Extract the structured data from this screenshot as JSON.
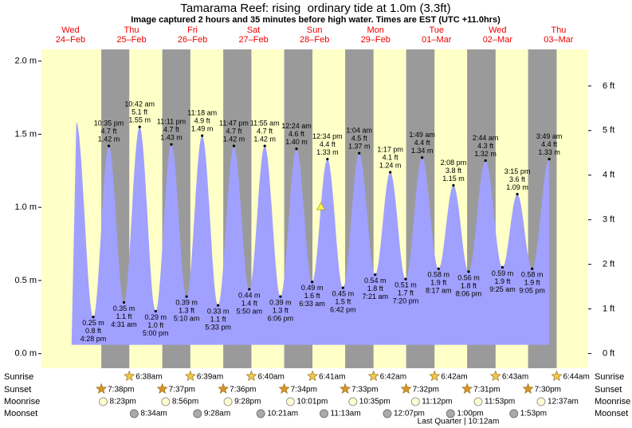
{
  "chart_data": {
    "type": "tide",
    "title": "Tamarama Reef: rising  ordinary tide at 1.0m (3.3ft)",
    "subtitle": "Image captured 2 hours and 35 minutes before high water. Times are EST (UTC +11.0hrs)",
    "days": [
      {
        "weekday": "Wed",
        "date": "24–Feb"
      },
      {
        "weekday": "Thu",
        "date": "25–Feb"
      },
      {
        "weekday": "Fri",
        "date": "26–Feb"
      },
      {
        "weekday": "Sat",
        "date": "27–Feb"
      },
      {
        "weekday": "Sun",
        "date": "28–Feb"
      },
      {
        "weekday": "Mon",
        "date": "29–Feb"
      },
      {
        "weekday": "Tue",
        "date": "01–Mar"
      },
      {
        "weekday": "Wed",
        "date": "02–Mar"
      },
      {
        "weekday": "Thu",
        "date": "03–Mar"
      }
    ],
    "ylim": [
      -0.1,
      2.08
    ],
    "yticks": [
      {
        "value": 0,
        "label": "0.0 m"
      },
      {
        "value": 0.5,
        "label": "0.5 m"
      },
      {
        "value": 1,
        "label": "1.0 m"
      },
      {
        "value": 1.5,
        "label": "1.5 m"
      },
      {
        "value": 2,
        "label": "2.0 m"
      }
    ],
    "y2lim": [
      -0.33,
      6.82
    ],
    "y2ticks": [
      {
        "value": 0,
        "label": "0 ft"
      },
      {
        "value": 1,
        "label": "1 ft"
      },
      {
        "value": 2,
        "label": "2 ft"
      },
      {
        "value": 3,
        "label": "3 ft"
      },
      {
        "value": 4,
        "label": "4 ft"
      },
      {
        "value": 5,
        "label": "5 ft"
      },
      {
        "value": 6,
        "label": "6 ft"
      }
    ],
    "color": "#a0a0ff",
    "day_color": "#ffffc8",
    "night_color": "#9a9a9a",
    "marker": {
      "day": 4,
      "hour": 10.0,
      "value": 1.0
    },
    "extremes": [
      {
        "day": 0,
        "hour": 9.8,
        "value": 1.58
      },
      {
        "day": 0,
        "time": "4:28 pm",
        "value": 0.25,
        "value_label": "0.25 m",
        "ft_label": "0.8 ft"
      },
      {
        "day": 0,
        "time": "10:35 pm",
        "value": 1.42,
        "value_label": "1.42 m",
        "ft_label": "4.7 ft"
      },
      {
        "day": 1,
        "time": "4:31 am",
        "value": 0.35,
        "value_label": "0.35 m",
        "ft_label": "1.1 ft"
      },
      {
        "day": 1,
        "time": "10:42 am",
        "value": 1.55,
        "value_label": "1.55 m",
        "ft_label": "5.1 ft"
      },
      {
        "day": 1,
        "time": "5:00 pm",
        "value": 0.29,
        "value_label": "0.29 m",
        "ft_label": "1.0 ft"
      },
      {
        "day": 1,
        "time": "11:11 pm",
        "value": 1.43,
        "value_label": "1.43 m",
        "ft_label": "4.7 ft"
      },
      {
        "day": 2,
        "time": "5:10 am",
        "value": 0.39,
        "value_label": "0.39 m",
        "ft_label": "1.3 ft"
      },
      {
        "day": 2,
        "time": "11:18 am",
        "value": 1.49,
        "value_label": "1.49 m",
        "ft_label": "4.9 ft"
      },
      {
        "day": 2,
        "time": "5:33 pm",
        "value": 0.33,
        "value_label": "0.33 m",
        "ft_label": "1.1 ft"
      },
      {
        "day": 2,
        "time": "11:47 pm",
        "value": 1.42,
        "value_label": "1.42 m",
        "ft_label": "4.7 ft"
      },
      {
        "day": 3,
        "time": "5:50 am",
        "value": 0.44,
        "value_label": "0.44 m",
        "ft_label": "1.4 ft"
      },
      {
        "day": 3,
        "time": "11:55 am",
        "value": 1.42,
        "value_label": "1.42 m",
        "ft_label": "4.7 ft"
      },
      {
        "day": 3,
        "time": "6:06 pm",
        "value": 0.39,
        "value_label": "0.39 m",
        "ft_label": "1.3 ft"
      },
      {
        "day": 4,
        "time": "12:24 am",
        "value": 1.4,
        "value_label": "1.40 m",
        "ft_label": "4.6 ft"
      },
      {
        "day": 4,
        "time": "6:33 am",
        "value": 0.49,
        "value_label": "0.49 m",
        "ft_label": "1.6 ft"
      },
      {
        "day": 4,
        "time": "12:34 pm",
        "value": 1.33,
        "value_label": "1.33 m",
        "ft_label": "4.4 ft"
      },
      {
        "day": 4,
        "time": "6:42 pm",
        "value": 0.45,
        "value_label": "0.45 m",
        "ft_label": "1.5 ft"
      },
      {
        "day": 5,
        "time": "1:04 am",
        "value": 1.37,
        "value_label": "1.37 m",
        "ft_label": "4.5 ft"
      },
      {
        "day": 5,
        "time": "7:21 am",
        "value": 0.54,
        "value_label": "0.54 m",
        "ft_label": "1.8 ft"
      },
      {
        "day": 5,
        "time": "1:17 pm",
        "value": 1.24,
        "value_label": "1.24 m",
        "ft_label": "4.1 ft"
      },
      {
        "day": 5,
        "time": "7:20 pm",
        "value": 0.51,
        "value_label": "0.51 m",
        "ft_label": "1.7 ft"
      },
      {
        "day": 6,
        "time": "1:49 am",
        "value": 1.34,
        "value_label": "1.34 m",
        "ft_label": "4.4 ft"
      },
      {
        "day": 6,
        "time": "8:17 am",
        "value": 0.58,
        "value_label": "0.58 m",
        "ft_label": "1.9 ft"
      },
      {
        "day": 6,
        "time": "2:08 pm",
        "value": 1.15,
        "value_label": "1.15 m",
        "ft_label": "3.8 ft"
      },
      {
        "day": 6,
        "time": "8:06 pm",
        "value": 0.56,
        "value_label": "0.56 m",
        "ft_label": "1.8 ft"
      },
      {
        "day": 7,
        "time": "2:44 am",
        "value": 1.32,
        "value_label": "1.32 m",
        "ft_label": "4.3 ft"
      },
      {
        "day": 7,
        "time": "9:25 am",
        "value": 0.59,
        "value_label": "0.59 m",
        "ft_label": "1.9 ft"
      },
      {
        "day": 7,
        "time": "3:15 pm",
        "value": 1.09,
        "value_label": "1.09 m",
        "ft_label": "3.6 ft"
      },
      {
        "day": 7,
        "time": "9:05 pm",
        "value": 0.58,
        "value_label": "0.58 m",
        "ft_label": "1.9 ft"
      },
      {
        "day": 8,
        "time": "3:49 am",
        "value": 1.33,
        "value_label": "1.33 m",
        "ft_label": "4.4 ft"
      }
    ],
    "rows": [
      {
        "name": "Sunrise",
        "icon": "sunrise",
        "events": [
          {
            "day": 1,
            "time": "6:38am"
          },
          {
            "day": 2,
            "time": "6:39am"
          },
          {
            "day": 3,
            "time": "6:40am"
          },
          {
            "day": 4,
            "time": "6:41am"
          },
          {
            "day": 5,
            "time": "6:42am"
          },
          {
            "day": 6,
            "time": "6:42am"
          },
          {
            "day": 7,
            "time": "6:43am"
          },
          {
            "day": 8,
            "time": "6:44am"
          }
        ]
      },
      {
        "name": "Sunset",
        "icon": "sunset",
        "events": [
          {
            "day": 0,
            "time": "7:38pm"
          },
          {
            "day": 1,
            "time": "7:37pm"
          },
          {
            "day": 2,
            "time": "7:36pm"
          },
          {
            "day": 3,
            "time": "7:34pm"
          },
          {
            "day": 4,
            "time": "7:33pm"
          },
          {
            "day": 5,
            "time": "7:32pm"
          },
          {
            "day": 6,
            "time": "7:31pm"
          },
          {
            "day": 7,
            "time": "7:30pm"
          }
        ]
      },
      {
        "name": "Moonrise",
        "icon": "moonrise",
        "events": [
          {
            "day": 0,
            "time": "8:23pm"
          },
          {
            "day": 1,
            "time": "8:56pm"
          },
          {
            "day": 2,
            "time": "9:28pm"
          },
          {
            "day": 3,
            "time": "10:01pm"
          },
          {
            "day": 4,
            "time": "10:35pm"
          },
          {
            "day": 5,
            "time": "11:12pm"
          },
          {
            "day": 6,
            "time": "11:53pm"
          },
          {
            "day": 8,
            "time": "12:37am"
          }
        ]
      },
      {
        "name": "Moonset",
        "icon": "moonset",
        "events": [
          {
            "day": 1,
            "time": "8:34am"
          },
          {
            "day": 2,
            "time": "9:28am"
          },
          {
            "day": 3,
            "time": "10:21am"
          },
          {
            "day": 4,
            "time": "11:13am"
          },
          {
            "day": 5,
            "time": "12:07pm"
          },
          {
            "day": 6,
            "time": "1:00pm"
          },
          {
            "day": 7,
            "time": "1:53pm"
          }
        ]
      }
    ],
    "moon_phase": "Last Quarter | 10:12am"
  }
}
